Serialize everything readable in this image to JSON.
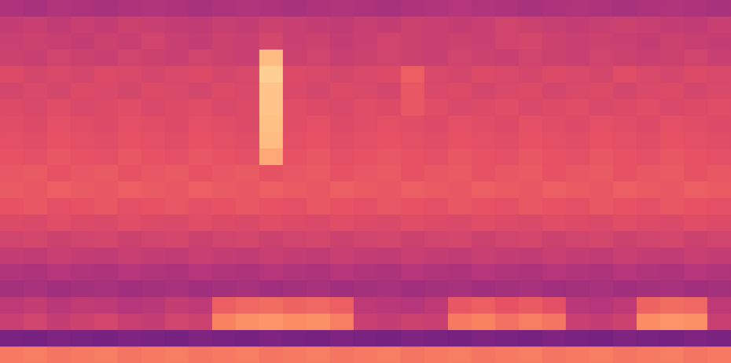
{
  "chart_data": {
    "type": "heatmap",
    "tick_labels": false,
    "grid": false,
    "color_range": [
      0,
      100
    ],
    "cells": [
      [
        48,
        47,
        49,
        48,
        47,
        48,
        49,
        48,
        47,
        48,
        49,
        48,
        47,
        48,
        49,
        48,
        47,
        48,
        49,
        50,
        49,
        48,
        47,
        48,
        49,
        48,
        47,
        48,
        49,
        48,
        47
      ],
      [
        54,
        55,
        53,
        55,
        54,
        56,
        55,
        54,
        53,
        55,
        54,
        56,
        55,
        54,
        53,
        55,
        54,
        56,
        55,
        54,
        55,
        57,
        56,
        55,
        54,
        55,
        56,
        55,
        54,
        53,
        55
      ],
      [
        55,
        56,
        55,
        54,
        56,
        55,
        57,
        55,
        54,
        56,
        55,
        58,
        55,
        56,
        54,
        55,
        57,
        56,
        55,
        56,
        55,
        57,
        58,
        56,
        55,
        56,
        55,
        54,
        56,
        55,
        54
      ],
      [
        56,
        55,
        57,
        56,
        55,
        57,
        56,
        55,
        57,
        56,
        55,
        86,
        56,
        57,
        55,
        56,
        57,
        56,
        55,
        57,
        56,
        55,
        57,
        56,
        55,
        57,
        56,
        55,
        56,
        57,
        55
      ],
      [
        60,
        58,
        59,
        58,
        60,
        59,
        58,
        59,
        60,
        58,
        59,
        90,
        60,
        59,
        58,
        59,
        60,
        66,
        59,
        58,
        60,
        59,
        58,
        60,
        59,
        58,
        61,
        59,
        58,
        60,
        59
      ],
      [
        58,
        59,
        58,
        60,
        59,
        58,
        60,
        59,
        58,
        60,
        59,
        88,
        59,
        58,
        60,
        59,
        58,
        64,
        59,
        60,
        58,
        59,
        60,
        58,
        59,
        60,
        58,
        59,
        60,
        58,
        59
      ],
      [
        60,
        59,
        61,
        59,
        60,
        61,
        59,
        60,
        61,
        59,
        60,
        88,
        61,
        60,
        59,
        61,
        60,
        64,
        61,
        59,
        60,
        61,
        59,
        60,
        61,
        59,
        60,
        61,
        59,
        60,
        61
      ],
      [
        61,
        60,
        62,
        61,
        60,
        62,
        61,
        60,
        62,
        61,
        60,
        87,
        61,
        62,
        60,
        61,
        62,
        61,
        60,
        62,
        61,
        60,
        62,
        61,
        60,
        62,
        61,
        60,
        62,
        61,
        60
      ],
      [
        62,
        61,
        63,
        62,
        61,
        63,
        62,
        61,
        63,
        62,
        61,
        86,
        62,
        63,
        61,
        62,
        63,
        62,
        61,
        63,
        62,
        61,
        63,
        62,
        61,
        63,
        62,
        61,
        63,
        62,
        61
      ],
      [
        63,
        62,
        64,
        63,
        62,
        64,
        63,
        62,
        64,
        63,
        62,
        82,
        63,
        64,
        62,
        63,
        64,
        63,
        62,
        64,
        63,
        62,
        64,
        63,
        62,
        64,
        63,
        62,
        64,
        63,
        62
      ],
      [
        64,
        65,
        63,
        64,
        65,
        63,
        64,
        65,
        63,
        64,
        65,
        63,
        64,
        65,
        63,
        64,
        65,
        63,
        64,
        65,
        63,
        64,
        65,
        63,
        64,
        65,
        63,
        64,
        65,
        63,
        64
      ],
      [
        65,
        64,
        66,
        65,
        64,
        66,
        65,
        64,
        66,
        65,
        64,
        66,
        65,
        64,
        66,
        65,
        64,
        66,
        65,
        64,
        66,
        65,
        64,
        66,
        65,
        64,
        66,
        65,
        64,
        66,
        65
      ],
      [
        63,
        64,
        62,
        63,
        64,
        62,
        63,
        64,
        62,
        63,
        64,
        63,
        62,
        64,
        63,
        62,
        64,
        63,
        62,
        64,
        63,
        62,
        64,
        63,
        62,
        64,
        63,
        62,
        64,
        63,
        62
      ],
      [
        60,
        59,
        61,
        60,
        59,
        61,
        60,
        59,
        61,
        60,
        59,
        61,
        60,
        59,
        61,
        60,
        59,
        61,
        60,
        59,
        61,
        60,
        59,
        61,
        60,
        59,
        61,
        60,
        59,
        61,
        60
      ],
      [
        57,
        58,
        56,
        57,
        58,
        56,
        57,
        58,
        56,
        57,
        58,
        56,
        57,
        58,
        56,
        57,
        58,
        56,
        57,
        58,
        56,
        57,
        58,
        56,
        57,
        58,
        56,
        57,
        58,
        56,
        57
      ],
      [
        54,
        53,
        55,
        54,
        53,
        55,
        54,
        53,
        55,
        54,
        53,
        55,
        54,
        53,
        55,
        54,
        53,
        55,
        54,
        53,
        55,
        54,
        53,
        55,
        54,
        53,
        55,
        54,
        53,
        55,
        54
      ],
      [
        49,
        48,
        50,
        49,
        48,
        50,
        49,
        48,
        50,
        49,
        48,
        50,
        49,
        48,
        50,
        49,
        48,
        50,
        49,
        48,
        50,
        49,
        48,
        50,
        49,
        48,
        50,
        49,
        48,
        50,
        49
      ],
      [
        46,
        47,
        45,
        46,
        47,
        45,
        46,
        47,
        45,
        46,
        47,
        45,
        46,
        47,
        45,
        46,
        47,
        45,
        46,
        47,
        45,
        46,
        47,
        45,
        46,
        47,
        45,
        46,
        47,
        45,
        46
      ],
      [
        52,
        54,
        51,
        53,
        52,
        50,
        51,
        54,
        52,
        66,
        68,
        69,
        67,
        68,
        66,
        52,
        51,
        50,
        52,
        64,
        66,
        63,
        65,
        62,
        51,
        50,
        52,
        67,
        69,
        68,
        52
      ],
      [
        55,
        57,
        54,
        56,
        58,
        55,
        54,
        57,
        56,
        74,
        77,
        78,
        76,
        77,
        73,
        55,
        54,
        56,
        55,
        72,
        74,
        70,
        73,
        71,
        55,
        54,
        56,
        76,
        78,
        77,
        55
      ],
      [
        36,
        35,
        37,
        36,
        35,
        37,
        36,
        35,
        37,
        36,
        35,
        37,
        36,
        35,
        37,
        36,
        35,
        37,
        36,
        35,
        37,
        36,
        35,
        37,
        36,
        35,
        37,
        36,
        35,
        37,
        36
      ],
      [
        72,
        73,
        71,
        72,
        73,
        71,
        72,
        73,
        71,
        72,
        73,
        71,
        72,
        73,
        71,
        72,
        73,
        71,
        72,
        73,
        71,
        72,
        73,
        71,
        72,
        73,
        71,
        72,
        73,
        71,
        72
      ]
    ]
  }
}
